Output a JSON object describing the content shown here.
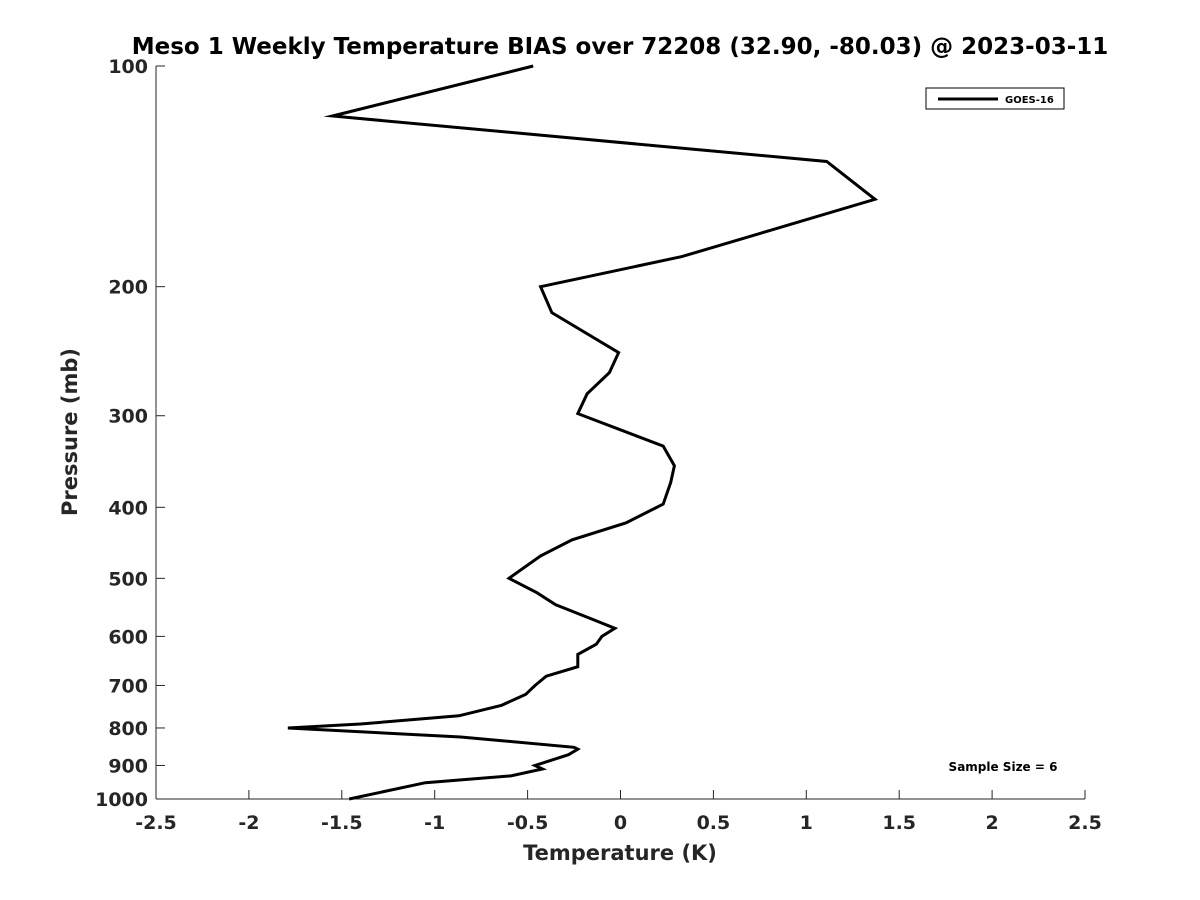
{
  "chart_data": {
    "type": "line",
    "title": "Meso 1 Weekly Temperature BIAS over 72208 (32.90, -80.03) @ 2023-03-11",
    "xlabel": "Temperature (K)",
    "ylabel": "Pressure (mb)",
    "xlim": [
      -2.5,
      2.5
    ],
    "ylim": [
      100,
      1000
    ],
    "y_scale": "log",
    "y_reversed": true,
    "xticks": [
      -2.5,
      -2,
      -1.5,
      -1,
      -0.5,
      0,
      0.5,
      1,
      1.5,
      2,
      2.5
    ],
    "xtick_labels": [
      "-2.5",
      "-2",
      "-1.5",
      "-1",
      "-0.5",
      "0",
      "0.5",
      "1",
      "1.5",
      "2",
      "2.5"
    ],
    "yticks": [
      100,
      200,
      300,
      400,
      500,
      600,
      700,
      800,
      900,
      1000
    ],
    "ytick_labels": [
      "100",
      "200",
      "300",
      "400",
      "500",
      "600",
      "700",
      "800",
      "900",
      "1000"
    ],
    "grid": false,
    "legend_position": "top-right",
    "annotation": "Sample Size = 6",
    "series": [
      {
        "name": "GOES-16",
        "color": "#000000",
        "x": [
          -0.47,
          -1.55,
          1.11,
          1.37,
          0.33,
          -0.43,
          -0.37,
          -0.01,
          -0.06,
          -0.18,
          -0.23,
          0.23,
          0.29,
          0.27,
          0.23,
          0.03,
          -0.26,
          -0.43,
          -0.6,
          -0.45,
          -0.35,
          -0.14,
          -0.03,
          -0.1,
          -0.13,
          -0.23,
          -0.23,
          -0.4,
          -0.46,
          -0.51,
          -0.64,
          -0.87,
          -1.4,
          -1.79,
          -0.86,
          -0.25,
          -0.23,
          -0.28,
          -0.37,
          -0.46,
          -0.42,
          -0.59,
          -1.05,
          -1.46
        ],
        "y": [
          100,
          117,
          135,
          152,
          182,
          200,
          217,
          246,
          262,
          280,
          298,
          330,
          351,
          370,
          396,
          420,
          443,
          466,
          500,
          523,
          543,
          570,
          585,
          600,
          615,
          635,
          660,
          680,
          700,
          720,
          745,
          770,
          790,
          800,
          823,
          850,
          855,
          870,
          885,
          900,
          910,
          930,
          950,
          1000
        ]
      }
    ]
  }
}
